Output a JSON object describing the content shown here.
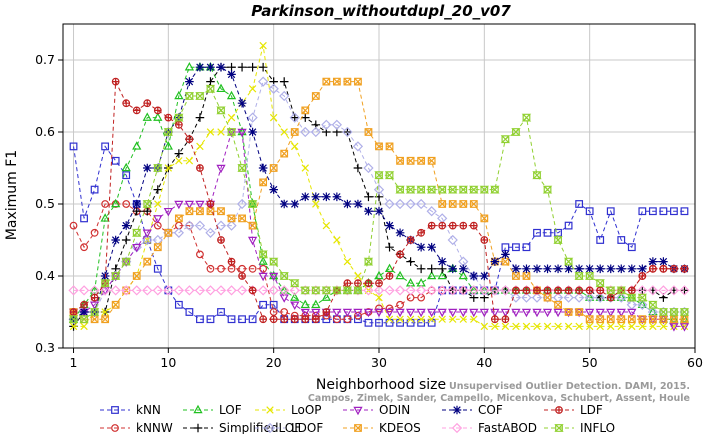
{
  "chart_data": {
    "type": "line",
    "title": "Parkinson_withoutdupl_20_v07",
    "xlabel": "Neighborhood size",
    "ylabel": "Maximum F1",
    "xlim": [
      0,
      60
    ],
    "ylim": [
      0.3,
      0.75
    ],
    "xticks": [
      1,
      10,
      20,
      30,
      40,
      50,
      60
    ],
    "yticks": [
      0.3,
      0.4,
      0.5,
      0.6,
      0.7
    ],
    "grid": true,
    "legend_position": "bottom",
    "x": [
      1,
      2,
      3,
      4,
      5,
      6,
      7,
      8,
      9,
      10,
      11,
      12,
      13,
      14,
      15,
      16,
      17,
      18,
      19,
      20,
      21,
      22,
      23,
      24,
      25,
      26,
      27,
      28,
      29,
      30,
      31,
      32,
      33,
      34,
      35,
      36,
      37,
      38,
      39,
      40,
      41,
      42,
      43,
      44,
      45,
      46,
      47,
      48,
      49,
      50,
      51,
      52,
      53,
      54,
      55,
      56,
      57,
      58,
      59
    ],
    "series": [
      {
        "name": "kNN",
        "color": "#3030d0",
        "marker": "square",
        "values": [
          0.58,
          0.48,
          0.52,
          0.58,
          0.56,
          0.54,
          0.5,
          0.45,
          0.41,
          0.38,
          0.36,
          0.35,
          0.34,
          0.34,
          0.35,
          0.34,
          0.34,
          0.34,
          0.36,
          0.36,
          0.34,
          0.34,
          0.34,
          0.34,
          0.34,
          0.34,
          0.34,
          0.34,
          0.335,
          0.335,
          0.335,
          0.335,
          0.335,
          0.335,
          0.335,
          0.38,
          0.38,
          0.38,
          0.38,
          0.38,
          0.38,
          0.44,
          0.44,
          0.44,
          0.46,
          0.46,
          0.46,
          0.47,
          0.5,
          0.49,
          0.45,
          0.49,
          0.45,
          0.44,
          0.49,
          0.49,
          0.49,
          0.49,
          0.49
        ]
      },
      {
        "name": "kNNW",
        "color": "#d03030",
        "marker": "circle",
        "values": [
          0.47,
          0.44,
          0.46,
          0.5,
          0.5,
          0.5,
          0.49,
          0.49,
          0.47,
          0.46,
          0.47,
          0.47,
          0.43,
          0.41,
          0.41,
          0.41,
          0.41,
          0.41,
          0.41,
          0.35,
          0.35,
          0.345,
          0.345,
          0.345,
          0.345,
          0.34,
          0.34,
          0.345,
          0.35,
          0.355,
          0.355,
          0.36,
          0.37,
          0.37,
          0.38,
          0.38,
          0.38,
          0.38,
          0.38,
          0.38,
          0.38,
          0.38,
          0.38,
          0.38,
          0.38,
          0.38,
          0.38,
          0.38,
          0.38,
          0.38,
          0.38,
          0.38,
          0.38,
          0.38,
          0.4,
          0.41,
          0.41,
          0.41,
          0.41
        ]
      },
      {
        "name": "LOF",
        "color": "#20c020",
        "marker": "triangle-up",
        "values": [
          0.34,
          0.36,
          0.38,
          0.48,
          0.5,
          0.55,
          0.58,
          0.62,
          0.62,
          0.58,
          0.65,
          0.69,
          0.69,
          0.69,
          0.66,
          0.65,
          0.6,
          0.5,
          0.42,
          0.4,
          0.38,
          0.37,
          0.36,
          0.36,
          0.37,
          0.38,
          0.38,
          0.38,
          0.39,
          0.4,
          0.41,
          0.4,
          0.39,
          0.39,
          0.4,
          0.4,
          0.41,
          0.4,
          0.38,
          0.38,
          0.38,
          0.38,
          0.38,
          0.38,
          0.38,
          0.38,
          0.38,
          0.38,
          0.38,
          0.37,
          0.37,
          0.37,
          0.37,
          0.37,
          0.36,
          0.35,
          0.34,
          0.34,
          0.34
        ]
      },
      {
        "name": "SimplifiedLOF",
        "color": "#000000",
        "marker": "plus",
        "values": [
          0.33,
          0.35,
          0.35,
          0.35,
          0.41,
          0.45,
          0.49,
          0.49,
          0.52,
          0.55,
          0.57,
          0.59,
          0.62,
          0.67,
          0.69,
          0.69,
          0.69,
          0.69,
          0.69,
          0.67,
          0.67,
          0.62,
          0.62,
          0.61,
          0.6,
          0.6,
          0.6,
          0.55,
          0.51,
          0.51,
          0.44,
          0.43,
          0.42,
          0.41,
          0.41,
          0.41,
          0.38,
          0.38,
          0.37,
          0.37,
          0.38,
          0.38,
          0.38,
          0.38,
          0.38,
          0.38,
          0.38,
          0.38,
          0.38,
          0.38,
          0.37,
          0.37,
          0.38,
          0.38,
          0.38,
          0.38,
          0.37,
          0.38,
          0.38
        ]
      },
      {
        "name": "LoOP",
        "color": "#e6e600",
        "marker": "x",
        "values": [
          0.33,
          0.33,
          0.35,
          0.35,
          0.36,
          0.38,
          0.4,
          0.45,
          0.5,
          0.55,
          0.56,
          0.56,
          0.58,
          0.6,
          0.6,
          0.62,
          0.64,
          0.66,
          0.72,
          0.62,
          0.6,
          0.58,
          0.55,
          0.5,
          0.47,
          0.45,
          0.42,
          0.4,
          0.38,
          0.37,
          0.34,
          0.34,
          0.34,
          0.34,
          0.34,
          0.34,
          0.34,
          0.34,
          0.34,
          0.33,
          0.33,
          0.33,
          0.33,
          0.33,
          0.33,
          0.33,
          0.33,
          0.33,
          0.33,
          0.33,
          0.33,
          0.33,
          0.33,
          0.33,
          0.33,
          0.33,
          0.33,
          0.33,
          0.33
        ]
      },
      {
        "name": "LDOF",
        "color": "#b0b0e8",
        "marker": "diamond",
        "values": [
          0.34,
          0.35,
          0.35,
          0.38,
          0.4,
          0.42,
          0.44,
          0.45,
          0.45,
          0.46,
          0.46,
          0.47,
          0.47,
          0.46,
          0.47,
          0.47,
          0.5,
          0.62,
          0.67,
          0.66,
          0.65,
          0.62,
          0.6,
          0.6,
          0.61,
          0.61,
          0.6,
          0.58,
          0.55,
          0.52,
          0.5,
          0.5,
          0.5,
          0.5,
          0.49,
          0.48,
          0.45,
          0.42,
          0.4,
          0.38,
          0.38,
          0.38,
          0.37,
          0.37,
          0.37,
          0.37,
          0.37,
          0.37,
          0.37,
          0.37,
          0.37,
          0.37,
          0.37,
          0.36,
          0.36,
          0.35,
          0.35,
          0.35,
          0.35
        ]
      },
      {
        "name": "ODIN",
        "color": "#a020c0",
        "marker": "triangle-down",
        "values": [
          0.35,
          0.35,
          0.36,
          0.38,
          0.4,
          0.42,
          0.44,
          0.46,
          0.48,
          0.49,
          0.5,
          0.5,
          0.5,
          0.5,
          0.55,
          0.6,
          0.6,
          0.45,
          0.4,
          0.4,
          0.37,
          0.36,
          0.35,
          0.35,
          0.35,
          0.35,
          0.35,
          0.35,
          0.35,
          0.35,
          0.35,
          0.35,
          0.35,
          0.35,
          0.35,
          0.35,
          0.35,
          0.35,
          0.35,
          0.35,
          0.35,
          0.35,
          0.35,
          0.35,
          0.35,
          0.35,
          0.35,
          0.35,
          0.35,
          0.35,
          0.35,
          0.35,
          0.35,
          0.35,
          0.34,
          0.34,
          0.34,
          0.33,
          0.33
        ]
      },
      {
        "name": "KDEOS",
        "color": "#f0a020",
        "marker": "square-x",
        "values": [
          0.35,
          0.34,
          0.34,
          0.34,
          0.36,
          0.38,
          0.4,
          0.42,
          0.44,
          0.46,
          0.48,
          0.49,
          0.49,
          0.49,
          0.49,
          0.48,
          0.48,
          0.47,
          0.53,
          0.55,
          0.57,
          0.6,
          0.63,
          0.65,
          0.67,
          0.67,
          0.67,
          0.67,
          0.6,
          0.58,
          0.58,
          0.56,
          0.56,
          0.56,
          0.56,
          0.5,
          0.5,
          0.5,
          0.5,
          0.48,
          0.42,
          0.42,
          0.4,
          0.4,
          0.38,
          0.37,
          0.36,
          0.35,
          0.35,
          0.34,
          0.34,
          0.34,
          0.34,
          0.34,
          0.34,
          0.34,
          0.34,
          0.34,
          0.34
        ]
      },
      {
        "name": "COF",
        "color": "#000080",
        "marker": "asterisk",
        "values": [
          0.34,
          0.35,
          0.35,
          0.4,
          0.45,
          0.47,
          0.5,
          0.55,
          0.55,
          0.6,
          0.62,
          0.67,
          0.69,
          0.69,
          0.69,
          0.68,
          0.64,
          0.6,
          0.55,
          0.52,
          0.5,
          0.5,
          0.51,
          0.51,
          0.51,
          0.51,
          0.5,
          0.5,
          0.49,
          0.49,
          0.47,
          0.46,
          0.45,
          0.44,
          0.44,
          0.42,
          0.41,
          0.41,
          0.4,
          0.4,
          0.42,
          0.43,
          0.41,
          0.41,
          0.41,
          0.41,
          0.41,
          0.41,
          0.41,
          0.41,
          0.41,
          0.41,
          0.41,
          0.41,
          0.41,
          0.42,
          0.42,
          0.41,
          0.41
        ]
      },
      {
        "name": "FastABOD",
        "color": "#ffa0e0",
        "marker": "diamond",
        "values": [
          0.38,
          0.38,
          0.38,
          0.38,
          0.38,
          0.38,
          0.38,
          0.38,
          0.38,
          0.38,
          0.38,
          0.38,
          0.38,
          0.38,
          0.38,
          0.38,
          0.38,
          0.38,
          0.38,
          0.38,
          0.38,
          0.38,
          0.38,
          0.38,
          0.38,
          0.38,
          0.38,
          0.38,
          0.38,
          0.38,
          0.38,
          0.38,
          0.38,
          0.38,
          0.38,
          0.38,
          0.38,
          0.38,
          0.38,
          0.38,
          0.38,
          0.38,
          0.38,
          0.38,
          0.38,
          0.38,
          0.38,
          0.38,
          0.38,
          0.38,
          0.38,
          0.38,
          0.38,
          0.38,
          0.38,
          0.38,
          0.38,
          0.38,
          0.38
        ]
      },
      {
        "name": "LDF",
        "color": "#c02020",
        "marker": "circle-plus",
        "values": [
          0.35,
          0.36,
          0.37,
          0.39,
          0.67,
          0.64,
          0.63,
          0.64,
          0.63,
          0.62,
          0.61,
          0.59,
          0.55,
          0.5,
          0.45,
          0.42,
          0.4,
          0.38,
          0.34,
          0.34,
          0.34,
          0.34,
          0.34,
          0.34,
          0.35,
          0.38,
          0.39,
          0.39,
          0.39,
          0.39,
          0.4,
          0.43,
          0.45,
          0.46,
          0.47,
          0.47,
          0.47,
          0.47,
          0.47,
          0.45,
          0.34,
          0.34,
          0.38,
          0.38,
          0.38,
          0.38,
          0.38,
          0.38,
          0.38,
          0.38,
          0.38,
          0.37,
          0.38,
          0.38,
          0.4,
          0.41,
          0.41,
          0.41,
          0.41
        ]
      },
      {
        "name": "INFLO",
        "color": "#90d030",
        "marker": "hourglass",
        "values": [
          0.34,
          0.34,
          0.35,
          0.39,
          0.4,
          0.42,
          0.46,
          0.5,
          0.55,
          0.6,
          0.62,
          0.65,
          0.65,
          0.66,
          0.63,
          0.6,
          0.55,
          0.5,
          0.43,
          0.42,
          0.4,
          0.39,
          0.38,
          0.38,
          0.38,
          0.38,
          0.38,
          0.38,
          0.42,
          0.54,
          0.54,
          0.52,
          0.52,
          0.52,
          0.52,
          0.52,
          0.52,
          0.52,
          0.52,
          0.52,
          0.52,
          0.59,
          0.6,
          0.62,
          0.54,
          0.52,
          0.45,
          0.42,
          0.4,
          0.4,
          0.39,
          0.38,
          0.38,
          0.37,
          0.37,
          0.36,
          0.35,
          0.35,
          0.35
        ]
      }
    ],
    "watermark": "Campos, Zimek, Sander, Campello, Micenkova, Schubert, Assent, Houle",
    "watermark_line1": "Unsupervised Outlier Detection. DAMI, 2015."
  }
}
